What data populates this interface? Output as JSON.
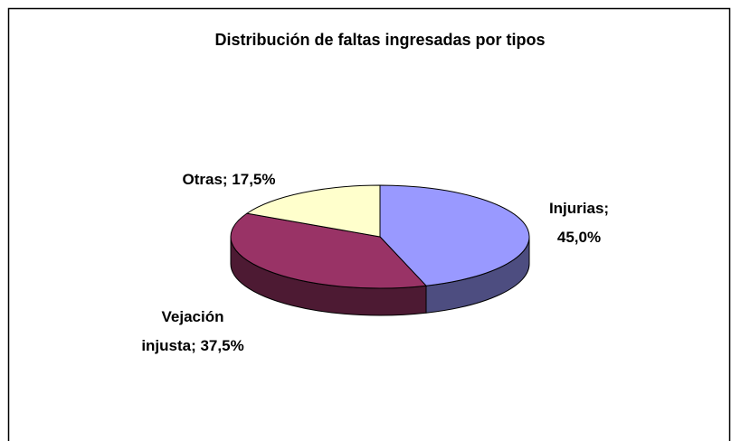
{
  "chart_data": {
    "type": "pie3d",
    "title": "Distribución de faltas ingresadas por tipos",
    "categories": [
      "Injurias",
      "Vejación injusta",
      "Otras"
    ],
    "values": [
      45.0,
      37.5,
      17.5
    ],
    "value_labels": [
      [
        "Injurias;",
        "45,0%"
      ],
      [
        "Vejación",
        "injusta; 37,5%"
      ],
      [
        "Otras; 17,5%"
      ]
    ],
    "colors": [
      "#9999ff",
      "#993366",
      "#ffffcc"
    ]
  }
}
